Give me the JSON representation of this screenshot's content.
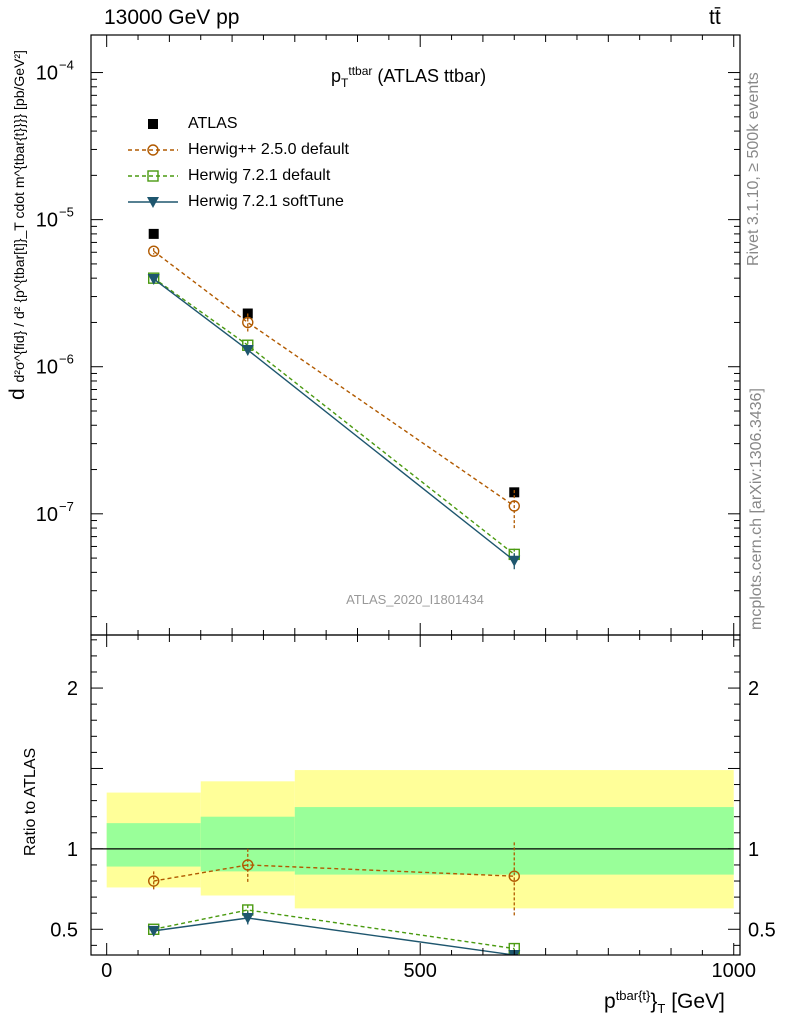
{
  "header": {
    "energy": "13000 GeV pp",
    "process": "tt̄",
    "rivet_note": "Rivet 3.1.10, ≥ 500k events",
    "mcplots_note": "mcplots.cern.ch [arXiv:1306.3436]"
  },
  "colors": {
    "atlas": "#000000",
    "herwigpp": "#b15a00",
    "herwig721": "#4a9a10",
    "softtune": "#1e566e",
    "band_inner": "#99ff99",
    "band_outer": "#ffff99"
  },
  "chart_data": [
    {
      "type": "line",
      "panel": "main",
      "title_main": "p",
      "title_sub": "T",
      "title_sup": "ttbar",
      "title_rest": " (ATLAS ttbar)",
      "ylabel_main": "d",
      "ylabel_text": "d²σ^{fid} / d² {p^{tbar[t]}_T cdot m^{tbar{t}}}} [pb/GeV²]",
      "yscale": "log",
      "ylim": [
        1.5e-08,
        0.00018
      ],
      "xlim": [
        -25,
        1010
      ],
      "yticks": [
        {
          "value": 1e-07,
          "base": "10",
          "exp": "−7"
        },
        {
          "value": 1e-06,
          "base": "10",
          "exp": "−6"
        },
        {
          "value": 1e-05,
          "base": "10",
          "exp": "−5"
        },
        {
          "value": 0.0001,
          "base": "10",
          "exp": "−4"
        }
      ],
      "legend_position": "top-left",
      "analysis_label": "ATLAS_2020_I1801434",
      "x": [
        75,
        225,
        650
      ],
      "series": [
        {
          "name": "ATLAS",
          "key": "atlas",
          "style": "data",
          "marker": "filled-square",
          "values": [
            8e-06,
            2.3e-06,
            1.4e-07
          ]
        },
        {
          "name": "Herwig++ 2.5.0 default",
          "key": "herwigpp",
          "style": "dashed",
          "marker": "open-circle",
          "values": [
            6.1e-06,
            2e-06,
            1.13e-07
          ],
          "err_lo": [
            5.8e-06,
            1.7e-06,
            8e-08
          ],
          "err_hi": [
            6.4e-06,
            2.3e-06,
            1.45e-07
          ]
        },
        {
          "name": "Herwig 7.2.1 default",
          "key": "herwig721",
          "style": "dashed",
          "marker": "open-square",
          "values": [
            4e-06,
            1.4e-06,
            5.3e-08
          ],
          "err_lo": [
            3.9e-06,
            1.3e-06,
            4.6e-08
          ],
          "err_hi": [
            4.1e-06,
            1.5e-06,
            5.8e-08
          ]
        },
        {
          "name": "Herwig 7.2.1 softTune",
          "key": "softtune",
          "style": "solid",
          "marker": "filled-triangle-down",
          "values": [
            3.95e-06,
            1.3e-06,
            4.8e-08
          ],
          "err_lo": [
            3.85e-06,
            1.2e-06,
            4.2e-08
          ],
          "err_hi": [
            4.05e-06,
            1.4e-06,
            5.4e-08
          ]
        }
      ]
    },
    {
      "type": "line",
      "panel": "ratio",
      "ylabel": "Ratio to ATLAS",
      "xlabel_main": "p",
      "xlabel_sup": "tbar{t}",
      "xlabel_rest": "}",
      "xlabel_sub": "T",
      "xlabel_unit": " [GeV]",
      "ylim": [
        0.34,
        2.33
      ],
      "xlim": [
        -25,
        1010
      ],
      "xticks": [
        0,
        500,
        1000
      ],
      "yticks": [
        0.5,
        1,
        2
      ],
      "ytick_labels": [
        "0.5",
        "1",
        "2"
      ],
      "xtick_labels": [
        "0",
        "500",
        "1000"
      ],
      "bins": [
        {
          "lo": 0,
          "hi": 150,
          "inner_lo": 0.89,
          "inner_hi": 1.16,
          "outer_lo": 0.76,
          "outer_hi": 1.35
        },
        {
          "lo": 150,
          "hi": 300,
          "inner_lo": 0.86,
          "inner_hi": 1.2,
          "outer_lo": 0.71,
          "outer_hi": 1.42
        },
        {
          "lo": 300,
          "hi": 1000,
          "inner_lo": 0.84,
          "inner_hi": 1.26,
          "outer_lo": 0.63,
          "outer_hi": 1.49
        }
      ],
      "x": [
        75,
        225,
        650
      ],
      "series": [
        {
          "name": "Herwig++ 2.5.0 default",
          "key": "herwigpp",
          "style": "dashed",
          "marker": "open-circle",
          "values": [
            0.8,
            0.9,
            0.83
          ],
          "err_lo": [
            0.74,
            0.79,
            0.58
          ],
          "err_hi": [
            0.86,
            1.0,
            1.04
          ]
        },
        {
          "name": "Herwig 7.2.1 default",
          "key": "herwig721",
          "style": "dashed",
          "marker": "open-square",
          "values": [
            0.5,
            0.62,
            0.38
          ],
          "err_lo": [
            0.48,
            0.59,
            0.35
          ],
          "err_hi": [
            0.52,
            0.65,
            0.41
          ]
        },
        {
          "name": "Herwig 7.2.1 softTune",
          "key": "softtune",
          "style": "solid",
          "marker": "filled-triangle-down",
          "values": [
            0.49,
            0.57,
            0.34
          ],
          "err_lo": [
            0.47,
            0.53,
            0.31
          ],
          "err_hi": [
            0.51,
            0.61,
            0.37
          ]
        }
      ]
    }
  ]
}
